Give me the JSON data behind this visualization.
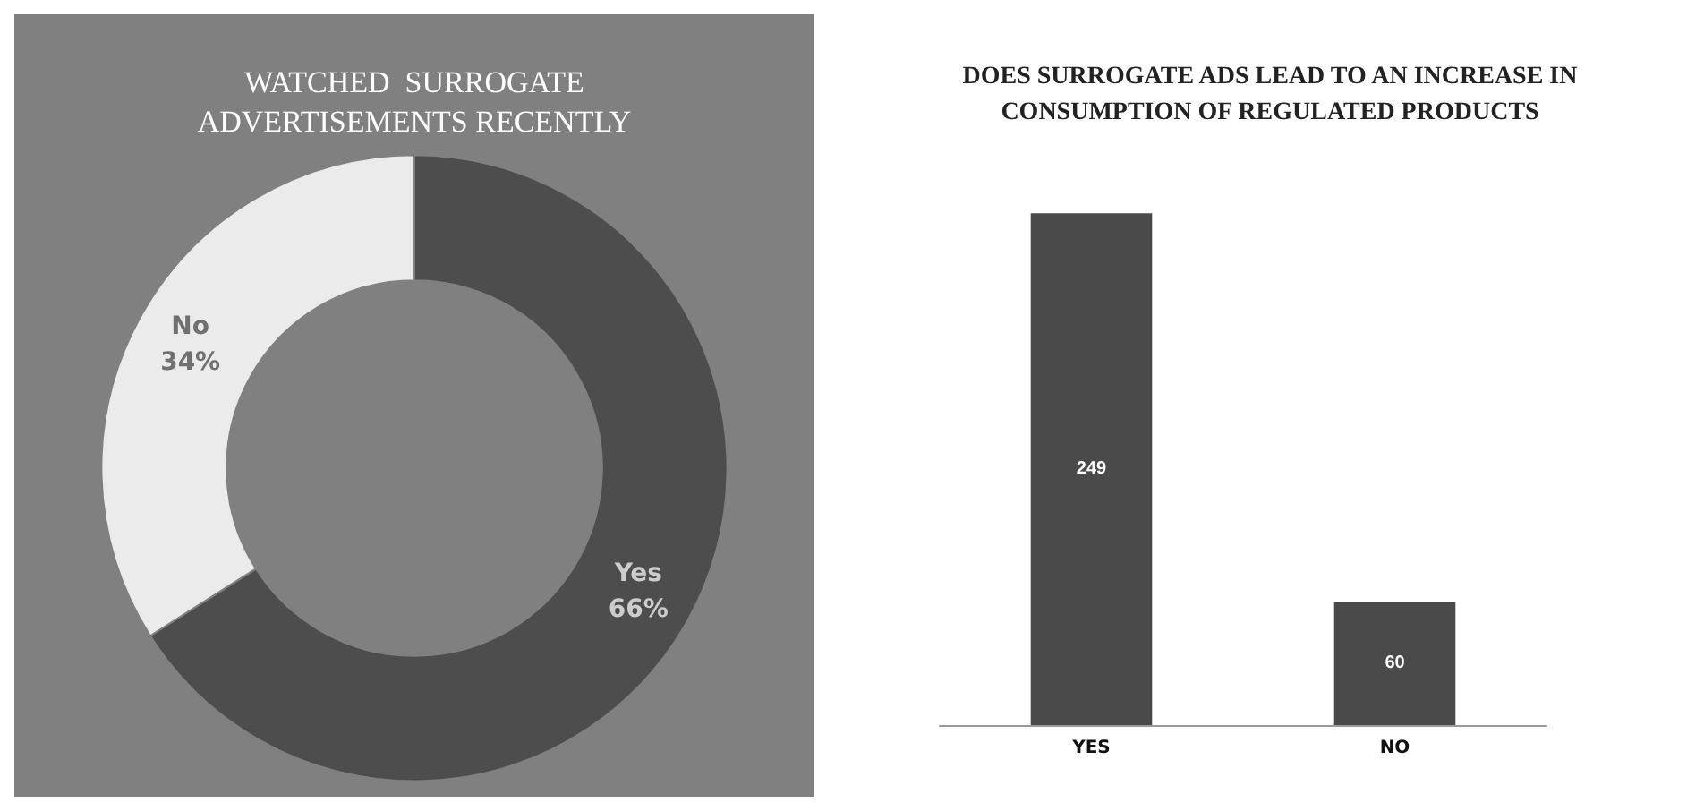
{
  "chart_data": [
    {
      "type": "donut",
      "title": "WATCHED  SURROGATE\nADVERTISEMENTS RECENTLY",
      "categories": [
        "Yes",
        "No"
      ],
      "values": [
        66,
        34
      ],
      "colors": [
        "#4d4d4d",
        "#ebebeb"
      ],
      "value_labels": [
        "66%",
        "34%"
      ]
    },
    {
      "type": "bar",
      "title": "DOES SURROGATE ADS LEAD TO AN INCREASE IN\nCONSUMPTION OF REGULATED PRODUCTS",
      "categories": [
        "YES",
        "NO"
      ],
      "values": [
        249,
        60
      ],
      "color": "#4a4a4a",
      "data_labels": true
    }
  ]
}
